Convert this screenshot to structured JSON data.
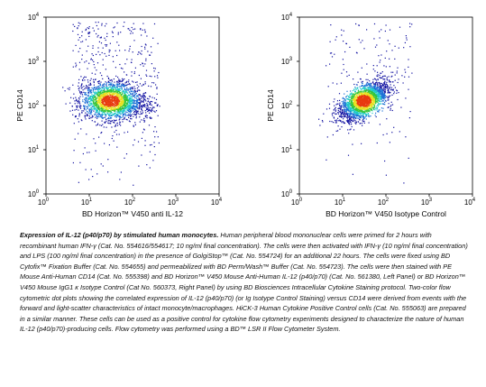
{
  "chart_data": [
    {
      "type": "scatter",
      "title": "",
      "xlabel": "BD Horizon™ V450 anti IL-12",
      "ylabel": "PE CD14",
      "x_scale": "log",
      "y_scale": "log",
      "xlim": [
        1,
        10000
      ],
      "ylim": [
        1,
        10000
      ],
      "x_ticks": [
        "10",
        "10",
        "10",
        "10",
        "10"
      ],
      "x_tick_exponents": [
        "0",
        "1",
        "2",
        "3",
        "4"
      ],
      "y_ticks": [
        "10",
        "10",
        "10",
        "10",
        "10"
      ],
      "y_tick_exponents": [
        "0",
        "1",
        "2",
        "3",
        "4"
      ],
      "density_colormap": [
        "#1010a0",
        "#1a6fd6",
        "#1ec8c8",
        "#36c63a",
        "#e8e020",
        "#e83a10"
      ],
      "population": {
        "center_x": 30,
        "center_y": 130,
        "log_spread_x": 0.35,
        "log_spread_y": 0.22,
        "tail_toward": {
          "x": 300,
          "y": 100
        },
        "events_shown": 2200,
        "background_scatter_events": 400
      }
    },
    {
      "type": "scatter",
      "title": "",
      "xlabel": "BD Horizon™ V450 Isotype Control",
      "ylabel": "PE CD14",
      "x_scale": "log",
      "y_scale": "log",
      "xlim": [
        1,
        10000
      ],
      "ylim": [
        1,
        10000
      ],
      "x_ticks": [
        "10",
        "10",
        "10",
        "10",
        "10"
      ],
      "x_tick_exponents": [
        "0",
        "1",
        "2",
        "3",
        "4"
      ],
      "y_ticks": [
        "10",
        "10",
        "10",
        "10",
        "10"
      ],
      "y_tick_exponents": [
        "0",
        "1",
        "2",
        "3",
        "4"
      ],
      "density_colormap": [
        "#1010a0",
        "#1a6fd6",
        "#1ec8c8",
        "#36c63a",
        "#e8e020",
        "#e83a10"
      ],
      "population": {
        "center_x": 30,
        "center_y": 130,
        "log_spread_x": 0.28,
        "log_spread_y": 0.22,
        "correlation": 0.6,
        "events_shown": 2200,
        "background_scatter_events": 150
      }
    }
  ],
  "caption": {
    "title": "Expression of IL-12 (p40/p70) by stimulated human monocytes.",
    "body": "Human peripheral blood mononuclear cells were primed for 2 hours with recombinant human IFN-γ (Cat. No. 554616/554617; 10 ng/ml final concentration). The cells were then activated with IFN-γ (10 ng/ml final concentration) and LPS (100 ng/ml final concentration) in the presence of GolgiStop™ (Cat. No. 554724) for an additional 22 hours. The cells were fixed using BD Cytofix™ Fixation Buffer (Cat. No. 554655) and permeabilized with BD Perm/Wash™ Buffer (Cat. No. 554723). The cells were then stained with PE Mouse Anti-Human CD14 (Cat. No. 555398) and BD Horizon™ V450 Mouse Anti-Human IL-12 (p40/p70) (Cat. No. 561380, Left Panel) or BD Horizon™ V450 Mouse IgG1 κ Isotype Control (Cat No. 560373, Right Panel) by using BD Biosciences Intracellular Cytokine Staining protocol. Two-color flow cytometric dot plots showing the correlated expression of IL-12 (p40/p70) (or Ig Isotype Control Staining) versus CD14 were derived from events with the forward and light-scatter characteristics of intact monocyte/macrophages. HiCK-3 Human Cytokine Positive Control cells (Cat. No. 555063) are prepared in a similar manner. These cells can be used as a positive control for cytokine flow cytometry experiments designed to characterize the nature of human IL-12 (p40/p70)-producing cells. Flow cytometry was performed using a BD™ LSR II Flow Cytometer System."
  }
}
